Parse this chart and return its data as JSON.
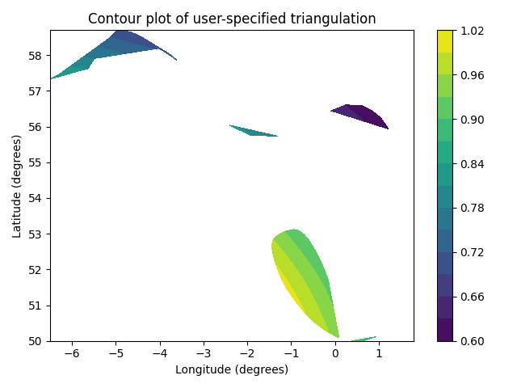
{
  "title": "Contour plot of user-specified triangulation",
  "xlabel": "Longitude (degrees)",
  "ylabel": "Latitude (degrees)",
  "cmap": "viridis",
  "levels": 14,
  "figsize": [
    6.4,
    4.8
  ],
  "dpi": 100
}
